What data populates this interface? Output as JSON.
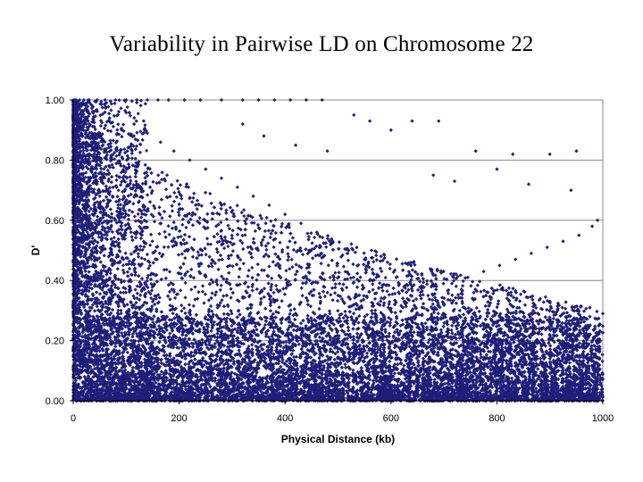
{
  "chart_data": {
    "type": "scatter",
    "title": "Variability in Pairwise LD on Chromosome 22",
    "xlabel": "Physical Distance (kb)",
    "ylabel": "D'",
    "xlim": [
      0,
      1000
    ],
    "ylim": [
      0,
      1
    ],
    "x_ticks": [
      0,
      200,
      400,
      600,
      800,
      1000
    ],
    "x_tick_labels": [
      "0",
      "200",
      "400",
      "600",
      "800",
      "1000"
    ],
    "y_ticks": [
      0,
      0.2,
      0.4,
      0.6,
      0.8,
      1.0
    ],
    "y_tick_labels": [
      "0.00",
      "0.20",
      "0.40",
      "0.60",
      "0.80",
      "1.00"
    ],
    "grid": "horizontal",
    "marker_color": "#1f1f7a",
    "series": [
      {
        "points": [
          [
            5,
            1.0
          ],
          [
            12,
            1.0
          ],
          [
            20,
            1.0
          ],
          [
            30,
            1.0
          ],
          [
            45,
            1.0
          ],
          [
            60,
            1.0
          ],
          [
            80,
            1.0
          ],
          [
            100,
            1.0
          ],
          [
            120,
            1.0
          ],
          [
            140,
            1.0
          ],
          [
            160,
            1.0
          ],
          [
            180,
            1.0
          ],
          [
            210,
            1.0
          ],
          [
            240,
            1.0
          ],
          [
            280,
            1.0
          ],
          [
            320,
            1.0
          ],
          [
            350,
            1.0
          ],
          [
            380,
            1.0
          ],
          [
            410,
            1.0
          ],
          [
            440,
            1.0
          ],
          [
            470,
            1.0
          ],
          [
            6,
            0.97
          ],
          [
            10,
            0.95
          ],
          [
            15,
            0.93
          ],
          [
            8,
            0.91
          ],
          [
            18,
            0.88
          ],
          [
            25,
            0.86
          ],
          [
            12,
            0.84
          ],
          [
            30,
            0.82
          ],
          [
            22,
            0.79
          ],
          [
            35,
            0.76
          ],
          [
            40,
            0.73
          ],
          [
            16,
            0.7
          ],
          [
            50,
            0.68
          ],
          [
            28,
            0.65
          ],
          [
            60,
            0.62
          ],
          [
            45,
            0.6
          ],
          [
            70,
            0.57
          ],
          [
            36,
            0.55
          ],
          [
            85,
            0.52
          ],
          [
            55,
            0.5
          ],
          [
            95,
            0.47
          ],
          [
            20,
            0.45
          ],
          [
            110,
            0.42
          ],
          [
            65,
            0.4
          ],
          [
            130,
            0.37
          ],
          [
            75,
            0.35
          ],
          [
            150,
            0.33
          ],
          [
            90,
            0.3
          ],
          [
            170,
            0.28
          ],
          [
            105,
            0.25
          ],
          [
            115,
            0.92
          ],
          [
            140,
            0.89
          ],
          [
            165,
            0.86
          ],
          [
            190,
            0.83
          ],
          [
            220,
            0.8
          ],
          [
            250,
            0.77
          ],
          [
            280,
            0.74
          ],
          [
            310,
            0.71
          ],
          [
            340,
            0.68
          ],
          [
            370,
            0.65
          ],
          [
            400,
            0.62
          ],
          [
            430,
            0.59
          ],
          [
            460,
            0.56
          ],
          [
            490,
            0.53
          ],
          [
            520,
            0.5
          ],
          [
            550,
            0.47
          ],
          [
            580,
            0.44
          ],
          [
            610,
            0.41
          ],
          [
            640,
            0.38
          ],
          [
            670,
            0.35
          ],
          [
            700,
            0.32
          ],
          [
            730,
            0.3
          ],
          [
            760,
            0.28
          ],
          [
            790,
            0.27
          ],
          [
            820,
            0.26
          ],
          [
            850,
            0.25
          ],
          [
            880,
            0.24
          ],
          [
            910,
            0.23
          ],
          [
            940,
            0.22
          ],
          [
            970,
            0.21
          ],
          [
            995,
            0.2
          ],
          [
            320,
            0.92
          ],
          [
            360,
            0.88
          ],
          [
            420,
            0.85
          ],
          [
            480,
            0.83
          ],
          [
            530,
            0.95
          ],
          [
            560,
            0.93
          ],
          [
            600,
            0.9
          ],
          [
            640,
            0.93
          ],
          [
            690,
            0.93
          ],
          [
            760,
            0.83
          ],
          [
            830,
            0.82
          ],
          [
            900,
            0.82
          ],
          [
            950,
            0.83
          ],
          [
            990,
            0.6
          ],
          [
            980,
            0.58
          ],
          [
            940,
            0.7
          ],
          [
            860,
            0.72
          ],
          [
            800,
            0.77
          ],
          [
            720,
            0.73
          ],
          [
            680,
            0.75
          ],
          [
            230,
            0.62
          ],
          [
            270,
            0.58
          ],
          [
            300,
            0.54
          ],
          [
            330,
            0.51
          ],
          [
            360,
            0.48
          ],
          [
            390,
            0.45
          ],
          [
            420,
            0.42
          ],
          [
            450,
            0.39
          ],
          [
            480,
            0.36
          ],
          [
            510,
            0.33
          ],
          [
            540,
            0.31
          ],
          [
            570,
            0.29
          ],
          [
            600,
            0.27
          ],
          [
            630,
            0.25
          ],
          [
            660,
            0.23
          ],
          [
            690,
            0.22
          ],
          [
            720,
            0.21
          ],
          [
            750,
            0.19
          ],
          [
            780,
            0.18
          ],
          [
            810,
            0.17
          ],
          [
            840,
            0.16
          ],
          [
            870,
            0.15
          ],
          [
            900,
            0.14
          ],
          [
            930,
            0.13
          ],
          [
            960,
            0.12
          ],
          [
            990,
            0.11
          ],
          [
            40,
            0.2
          ],
          [
            80,
            0.18
          ],
          [
            120,
            0.16
          ],
          [
            160,
            0.14
          ],
          [
            200,
            0.12
          ],
          [
            240,
            0.1
          ],
          [
            280,
            0.08
          ],
          [
            320,
            0.06
          ],
          [
            360,
            0.04
          ],
          [
            400,
            0.02
          ],
          [
            440,
            0.01
          ],
          [
            480,
            0.03
          ],
          [
            520,
            0.05
          ],
          [
            560,
            0.07
          ],
          [
            600,
            0.09
          ],
          [
            640,
            0.11
          ],
          [
            680,
            0.13
          ],
          [
            720,
            0.15
          ],
          [
            760,
            0.17
          ],
          [
            800,
            0.19
          ],
          [
            840,
            0.21
          ],
          [
            880,
            0.23
          ],
          [
            920,
            0.25
          ],
          [
            960,
            0.27
          ],
          [
            1000,
            0.29
          ],
          [
            25,
            0.1
          ],
          [
            55,
            0.12
          ],
          [
            85,
            0.08
          ],
          [
            115,
            0.06
          ],
          [
            145,
            0.04
          ],
          [
            175,
            0.02
          ],
          [
            205,
            0.05
          ],
          [
            235,
            0.07
          ],
          [
            265,
            0.09
          ],
          [
            295,
            0.11
          ],
          [
            325,
            0.13
          ],
          [
            355,
            0.15
          ],
          [
            385,
            0.17
          ],
          [
            415,
            0.19
          ],
          [
            445,
            0.21
          ],
          [
            475,
            0.23
          ],
          [
            505,
            0.25
          ],
          [
            535,
            0.27
          ],
          [
            565,
            0.29
          ],
          [
            595,
            0.31
          ],
          [
            625,
            0.33
          ],
          [
            655,
            0.35
          ],
          [
            685,
            0.37
          ],
          [
            715,
            0.39
          ],
          [
            745,
            0.41
          ],
          [
            775,
            0.43
          ],
          [
            805,
            0.45
          ],
          [
            835,
            0.47
          ],
          [
            865,
            0.49
          ],
          [
            895,
            0.51
          ],
          [
            925,
            0.53
          ],
          [
            955,
            0.55
          ]
        ],
        "generated_density": {
          "seed": 22,
          "near_count": 2500,
          "broad_count": 6000,
          "low_count": 9000
        }
      }
    ]
  }
}
